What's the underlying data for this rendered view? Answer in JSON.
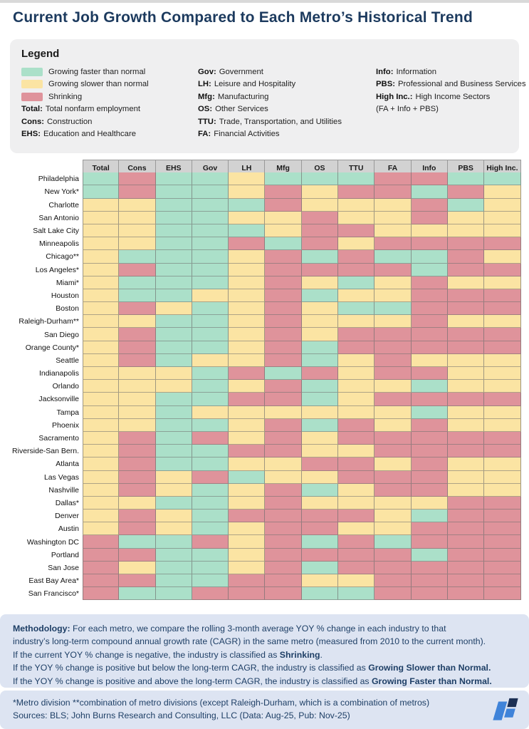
{
  "title": "Current Job Growth Compared to Each Metro’s Historical Trend",
  "colors": {
    "G": "#abe0c9",
    "Y": "#fbe4a3",
    "R": "#df939b",
    "header_bg": "#d2d2d2",
    "grid_line": "#999999",
    "title_color": "#1c3a5e",
    "legend_bg": "#efeff0",
    "footer_bg": "#dde4f2",
    "footer_text": "#1e3f66",
    "logo_blue": "#3f83d9",
    "logo_navy": "#1b2f54"
  },
  "legend": {
    "heading": "Legend",
    "status_items": [
      {
        "key": "G",
        "label": "Growing faster than normal"
      },
      {
        "key": "Y",
        "label": "Growing slower than normal"
      },
      {
        "key": "R",
        "label": "Shrinking"
      }
    ],
    "col1_defs": [
      {
        "term": "Total:",
        "desc": "Total nonfarm employment"
      },
      {
        "term": "Cons:",
        "desc": "Construction"
      },
      {
        "term": "EHS:",
        "desc": "Education and Healthcare"
      }
    ],
    "col2_defs": [
      {
        "term": "Gov:",
        "desc": "Government"
      },
      {
        "term": "LH:",
        "desc": "Leisure and Hospitality"
      },
      {
        "term": "Mfg:",
        "desc": "Manufacturing"
      },
      {
        "term": "OS:",
        "desc": "Other Services"
      },
      {
        "term": "TTU:",
        "desc": "Trade, Transportation, and Utilities"
      },
      {
        "term": "FA:",
        "desc": "Financial Activities"
      }
    ],
    "col3_defs": [
      {
        "term": "Info:",
        "desc": "Information"
      },
      {
        "term": "PBS:",
        "desc": "Professional and Business Services"
      },
      {
        "term": "High Inc.:",
        "desc": "High Income Sectors"
      },
      {
        "term": "",
        "desc": "(FA + Info + PBS)"
      }
    ]
  },
  "chart_data": {
    "type": "heatmap",
    "title": "Current Job Growth Compared to Each Metro’s Historical Trend",
    "value_legend": {
      "G": "Growing faster than normal",
      "Y": "Growing slower than normal",
      "R": "Shrinking"
    },
    "columns": [
      "Total",
      "Cons",
      "EHS",
      "Gov",
      "LH",
      "Mfg",
      "OS",
      "TTU",
      "FA",
      "Info",
      "PBS",
      "High Inc."
    ],
    "rows": [
      "Philadelphia",
      "New York*",
      "Charlotte",
      "San Antonio",
      "Salt Lake City",
      "Minneapolis",
      "Chicago**",
      "Los Angeles*",
      "Miami*",
      "Houston",
      "Boston",
      "Raleigh-Durham**",
      "San Diego",
      "Orange County*",
      "Seattle",
      "Indianapolis",
      "Orlando",
      "Jacksonville",
      "Tampa",
      "Phoenix",
      "Sacramento",
      "Riverside-San Bern.",
      "Atlanta",
      "Las Vegas",
      "Nashville",
      "Dallas*",
      "Denver",
      "Austin",
      "Washington DC",
      "Portland",
      "San Jose",
      "East Bay Area*",
      "San Francisco*"
    ],
    "values": [
      [
        "G",
        "R",
        "G",
        "G",
        "Y",
        "G",
        "G",
        "G",
        "R",
        "R",
        "G",
        "G"
      ],
      [
        "G",
        "R",
        "G",
        "G",
        "Y",
        "R",
        "Y",
        "R",
        "R",
        "G",
        "R",
        "Y"
      ],
      [
        "Y",
        "Y",
        "G",
        "G",
        "G",
        "R",
        "Y",
        "Y",
        "Y",
        "R",
        "G",
        "Y"
      ],
      [
        "Y",
        "Y",
        "G",
        "G",
        "Y",
        "Y",
        "R",
        "Y",
        "Y",
        "R",
        "Y",
        "Y"
      ],
      [
        "Y",
        "Y",
        "G",
        "G",
        "G",
        "Y",
        "R",
        "R",
        "Y",
        "Y",
        "Y",
        "Y"
      ],
      [
        "Y",
        "Y",
        "G",
        "G",
        "R",
        "G",
        "R",
        "Y",
        "R",
        "R",
        "R",
        "R"
      ],
      [
        "Y",
        "G",
        "G",
        "G",
        "Y",
        "R",
        "G",
        "R",
        "G",
        "G",
        "R",
        "Y"
      ],
      [
        "Y",
        "R",
        "G",
        "G",
        "Y",
        "R",
        "R",
        "R",
        "R",
        "G",
        "R",
        "R"
      ],
      [
        "Y",
        "G",
        "G",
        "G",
        "Y",
        "R",
        "Y",
        "G",
        "Y",
        "R",
        "Y",
        "Y"
      ],
      [
        "Y",
        "G",
        "G",
        "Y",
        "Y",
        "R",
        "G",
        "Y",
        "Y",
        "R",
        "R",
        "R"
      ],
      [
        "Y",
        "R",
        "Y",
        "G",
        "Y",
        "R",
        "Y",
        "G",
        "G",
        "R",
        "R",
        "R"
      ],
      [
        "Y",
        "Y",
        "G",
        "G",
        "Y",
        "R",
        "Y",
        "Y",
        "Y",
        "R",
        "Y",
        "Y"
      ],
      [
        "Y",
        "R",
        "G",
        "G",
        "Y",
        "R",
        "Y",
        "R",
        "R",
        "R",
        "R",
        "R"
      ],
      [
        "Y",
        "R",
        "G",
        "G",
        "Y",
        "R",
        "G",
        "R",
        "R",
        "R",
        "R",
        "R"
      ],
      [
        "Y",
        "R",
        "G",
        "Y",
        "Y",
        "R",
        "G",
        "Y",
        "R",
        "Y",
        "Y",
        "Y"
      ],
      [
        "Y",
        "Y",
        "Y",
        "G",
        "R",
        "G",
        "R",
        "Y",
        "R",
        "R",
        "Y",
        "Y"
      ],
      [
        "Y",
        "Y",
        "Y",
        "G",
        "Y",
        "R",
        "G",
        "Y",
        "Y",
        "G",
        "Y",
        "Y"
      ],
      [
        "Y",
        "Y",
        "G",
        "G",
        "R",
        "R",
        "G",
        "Y",
        "R",
        "R",
        "R",
        "R"
      ],
      [
        "Y",
        "Y",
        "G",
        "Y",
        "Y",
        "Y",
        "Y",
        "Y",
        "Y",
        "G",
        "Y",
        "Y"
      ],
      [
        "Y",
        "Y",
        "G",
        "G",
        "Y",
        "R",
        "G",
        "R",
        "Y",
        "R",
        "Y",
        "Y"
      ],
      [
        "Y",
        "R",
        "G",
        "R",
        "Y",
        "R",
        "Y",
        "R",
        "R",
        "R",
        "R",
        "R"
      ],
      [
        "Y",
        "R",
        "G",
        "G",
        "R",
        "R",
        "Y",
        "Y",
        "R",
        "R",
        "R",
        "R"
      ],
      [
        "Y",
        "R",
        "G",
        "G",
        "Y",
        "Y",
        "R",
        "R",
        "Y",
        "R",
        "Y",
        "Y"
      ],
      [
        "Y",
        "R",
        "Y",
        "R",
        "G",
        "Y",
        "Y",
        "R",
        "R",
        "R",
        "Y",
        "Y"
      ],
      [
        "Y",
        "R",
        "Y",
        "G",
        "Y",
        "R",
        "G",
        "Y",
        "R",
        "R",
        "Y",
        "Y"
      ],
      [
        "Y",
        "Y",
        "G",
        "G",
        "Y",
        "R",
        "Y",
        "Y",
        "Y",
        "Y",
        "R",
        "R"
      ],
      [
        "Y",
        "R",
        "Y",
        "G",
        "R",
        "R",
        "R",
        "R",
        "Y",
        "G",
        "R",
        "R"
      ],
      [
        "Y",
        "R",
        "Y",
        "G",
        "Y",
        "R",
        "R",
        "Y",
        "Y",
        "R",
        "R",
        "R"
      ],
      [
        "R",
        "G",
        "G",
        "R",
        "Y",
        "R",
        "G",
        "R",
        "G",
        "R",
        "R",
        "R"
      ],
      [
        "R",
        "R",
        "G",
        "G",
        "Y",
        "R",
        "R",
        "R",
        "R",
        "G",
        "R",
        "R"
      ],
      [
        "R",
        "Y",
        "G",
        "G",
        "Y",
        "R",
        "G",
        "R",
        "R",
        "R",
        "R",
        "R"
      ],
      [
        "R",
        "R",
        "G",
        "G",
        "R",
        "R",
        "Y",
        "Y",
        "R",
        "R",
        "R",
        "R"
      ],
      [
        "R",
        "G",
        "G",
        "R",
        "R",
        "R",
        "G",
        "G",
        "R",
        "R",
        "R",
        "R"
      ]
    ]
  },
  "footer": {
    "methodology_lines": [
      [
        {
          "b": true,
          "t": "Methodology:"
        },
        {
          "t": " For each metro, we compare the rolling 3-month average YOY % change in each industry to that"
        }
      ],
      [
        {
          "t": "industry’s long-term compound annual growth rate (CAGR) in the same metro (measured from 2010 to the current month)."
        }
      ],
      [
        {
          "t": "If the current YOY % change is negative, the industry is classified as "
        },
        {
          "b": true,
          "t": "Shrinking"
        },
        {
          "t": "."
        }
      ],
      [
        {
          "t": "If the YOY % change is positive but below the long-term CAGR, the industry is classified as "
        },
        {
          "b": true,
          "t": "Growing Slower than Normal."
        }
      ],
      [
        {
          "t": "If the YOY % change is positive and above the long-term CAGR, the industry is classified as "
        },
        {
          "b": true,
          "t": "Growing Faster than Normal."
        }
      ]
    ],
    "footnote": "*Metro division **combination of metro divisions (except Raleigh-Durham, which is a combination of metros)",
    "sources": "Sources: BLS; John Burns Research and Consulting, LLC (Data: Aug-25, Pub: Nov-25)"
  }
}
